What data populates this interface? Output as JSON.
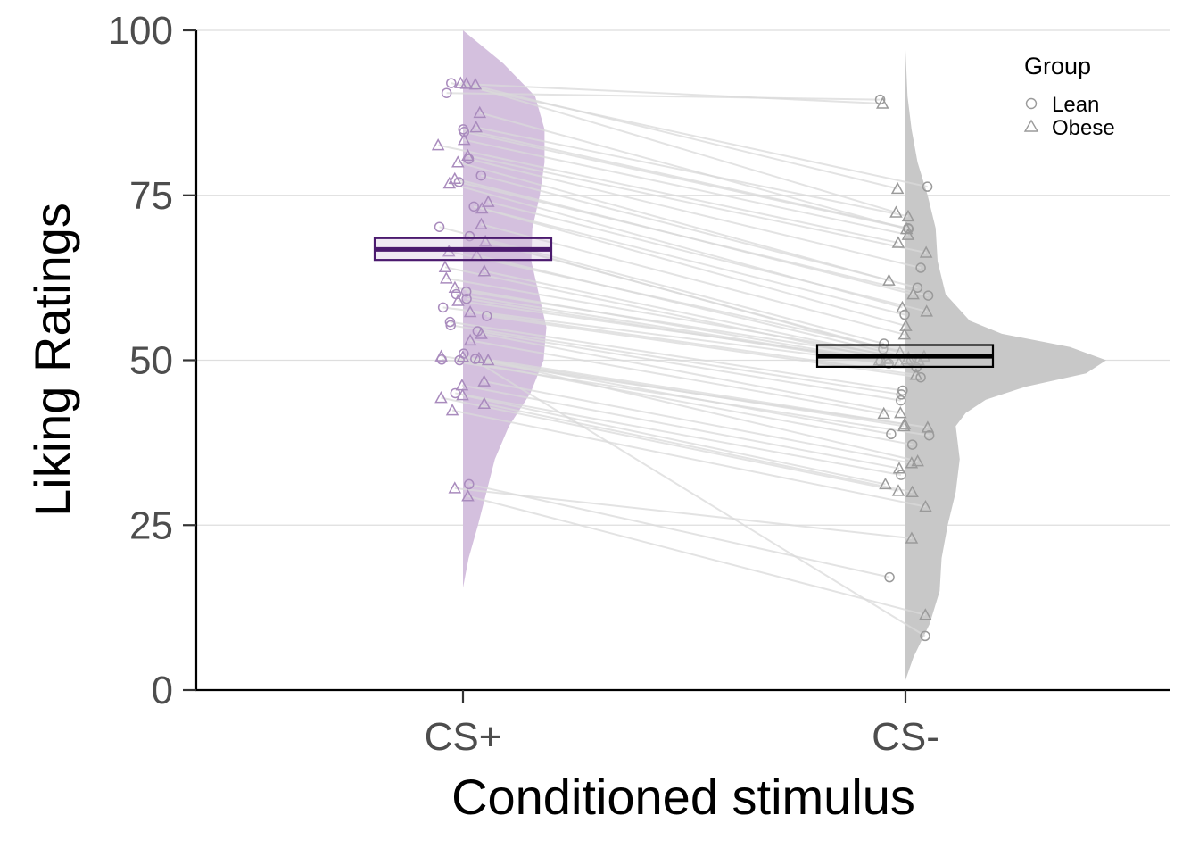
{
  "chart_data": {
    "type": "raincloud",
    "title": "",
    "xlabel": "Conditioned stimulus",
    "ylabel": "Liking Ratings",
    "ylim": [
      0,
      100
    ],
    "yticks": [
      0,
      25,
      50,
      75,
      100
    ],
    "categories": [
      "CS+",
      "CS-"
    ],
    "grid": "horizontal major lines",
    "legend": {
      "title": "Group",
      "position": "top-right",
      "entries": [
        {
          "label": "Lean",
          "shape": "circle"
        },
        {
          "label": "Obese",
          "shape": "triangle"
        }
      ]
    },
    "colors": {
      "CS+": "#4b1a6e",
      "CS-": "#000000",
      "cs_plus_fill": "#d4c0de",
      "cs_minus_fill": "#c8c8c8",
      "lines": "#d9d9d9",
      "grid": "#dedede"
    },
    "boxes": [
      {
        "category": "CS+",
        "mean": 66.8,
        "lower": 65.2,
        "upper": 68.5
      },
      {
        "category": "CS-",
        "mean": 50.6,
        "lower": 49.0,
        "upper": 52.3
      }
    ],
    "densities": {
      "CS+": {
        "y": [
          15.5,
          20,
          25,
          30,
          35,
          40,
          45,
          50,
          55,
          60,
          65,
          70,
          75,
          80,
          85,
          90,
          95,
          100
        ],
        "density": [
          0.0,
          0.06,
          0.16,
          0.25,
          0.34,
          0.49,
          0.72,
          0.86,
          0.89,
          0.81,
          0.73,
          0.74,
          0.82,
          0.87,
          0.87,
          0.77,
          0.43,
          0.0
        ]
      },
      "CS-": {
        "y": [
          1.5,
          5,
          10,
          15,
          20,
          25,
          30,
          35,
          40,
          42,
          44,
          46,
          48,
          50,
          52,
          54,
          56,
          58,
          60,
          65,
          70,
          75,
          80,
          85,
          90,
          97
        ],
        "density": [
          0.0,
          0.04,
          0.12,
          0.17,
          0.18,
          0.21,
          0.25,
          0.27,
          0.25,
          0.3,
          0.4,
          0.6,
          0.9,
          1.0,
          0.82,
          0.48,
          0.32,
          0.26,
          0.2,
          0.16,
          0.15,
          0.11,
          0.06,
          0.03,
          0.01,
          0.0
        ]
      }
    },
    "paired_points": [
      {
        "group": "Lean",
        "cs_plus": 90.5,
        "cs_minus": 89.5
      },
      {
        "group": "Obese",
        "cs_plus": 91.8,
        "cs_minus": 88.9
      },
      {
        "group": "Obese",
        "cs_plus": 91.9,
        "cs_minus": 76.0
      },
      {
        "group": "Obese",
        "cs_plus": 92.0,
        "cs_minus": 72.4
      },
      {
        "group": "Lean",
        "cs_plus": 92.0,
        "cs_minus": 76.3
      },
      {
        "group": "Obese",
        "cs_plus": 87.5,
        "cs_minus": 69.9
      },
      {
        "group": "Obese",
        "cs_plus": 85.3,
        "cs_minus": 71.8
      },
      {
        "group": "Lean",
        "cs_plus": 85.0,
        "cs_minus": 70.0
      },
      {
        "group": "Lean",
        "cs_plus": 84.6,
        "cs_minus": 69.9
      },
      {
        "group": "Obese",
        "cs_plus": 83.4,
        "cs_minus": 69.0
      },
      {
        "group": "Obese",
        "cs_plus": 82.6,
        "cs_minus": 67.8
      },
      {
        "group": "Obese",
        "cs_plus": 81.0,
        "cs_minus": 66.3
      },
      {
        "group": "Lean",
        "cs_plus": 80.5,
        "cs_minus": 64.0
      },
      {
        "group": "Obese",
        "cs_plus": 80.0,
        "cs_minus": 62.1
      },
      {
        "group": "Lean",
        "cs_plus": 78.0,
        "cs_minus": 61.0
      },
      {
        "group": "Obese",
        "cs_plus": 77.5,
        "cs_minus": 60.0
      },
      {
        "group": "Lean",
        "cs_plus": 77.0,
        "cs_minus": 59.8
      },
      {
        "group": "Obese",
        "cs_plus": 76.8,
        "cs_minus": 58.0
      },
      {
        "group": "Obese",
        "cs_plus": 74.0,
        "cs_minus": 57.4
      },
      {
        "group": "Lean",
        "cs_plus": 73.3,
        "cs_minus": 56.9
      },
      {
        "group": "Obese",
        "cs_plus": 73.0,
        "cs_minus": 55.2
      },
      {
        "group": "Obese",
        "cs_plus": 70.6,
        "cs_minus": 53.9
      },
      {
        "group": "Lean",
        "cs_plus": 70.2,
        "cs_minus": 52.5
      },
      {
        "group": "Lean",
        "cs_plus": 68.8,
        "cs_minus": 51.7
      },
      {
        "group": "Obese",
        "cs_plus": 68.0,
        "cs_minus": 51.2
      },
      {
        "group": "Obese",
        "cs_plus": 66.5,
        "cs_minus": 50.6
      },
      {
        "group": "Obese",
        "cs_plus": 65.9,
        "cs_minus": 50.4
      },
      {
        "group": "Obese",
        "cs_plus": 64.1,
        "cs_minus": 50.2
      },
      {
        "group": "Obese",
        "cs_plus": 63.5,
        "cs_minus": 50.1
      },
      {
        "group": "Obese",
        "cs_plus": 62.4,
        "cs_minus": 50.0
      },
      {
        "group": "Obese",
        "cs_plus": 61.0,
        "cs_minus": 50.0
      },
      {
        "group": "Lean",
        "cs_plus": 60.4,
        "cs_minus": 49.9
      },
      {
        "group": "Lean",
        "cs_plus": 60.0,
        "cs_minus": 49.8
      },
      {
        "group": "Obese",
        "cs_plus": 59.0,
        "cs_minus": 49.6
      },
      {
        "group": "Lean",
        "cs_plus": 59.3,
        "cs_minus": 49.5
      },
      {
        "group": "Lean",
        "cs_plus": 58.0,
        "cs_minus": 48.9
      },
      {
        "group": "Obese",
        "cs_plus": 57.3,
        "cs_minus": 47.8
      },
      {
        "group": "Lean",
        "cs_plus": 56.7,
        "cs_minus": 47.4
      },
      {
        "group": "Lean",
        "cs_plus": 55.8,
        "cs_minus": 45.4
      },
      {
        "group": "Lean",
        "cs_plus": 55.3,
        "cs_minus": 44.8
      },
      {
        "group": "Lean",
        "cs_plus": 54.4,
        "cs_minus": 43.9
      },
      {
        "group": "Obese",
        "cs_plus": 54.0,
        "cs_minus": 42.0
      },
      {
        "group": "Obese",
        "cs_plus": 53.0,
        "cs_minus": 41.9
      },
      {
        "group": "Obese",
        "cs_plus": 50.6,
        "cs_minus": 40.3
      },
      {
        "group": "Obese",
        "cs_plus": 50.5,
        "cs_minus": 40.0
      },
      {
        "group": "Obese",
        "cs_plus": 50.3,
        "cs_minus": 39.8
      },
      {
        "group": "Lean",
        "cs_plus": 50.2,
        "cs_minus": 38.8
      },
      {
        "group": "Lean",
        "cs_plus": 50.1,
        "cs_minus": 38.6
      },
      {
        "group": "Lean",
        "cs_plus": 50.0,
        "cs_minus": 37.2
      },
      {
        "group": "Obese",
        "cs_plus": 50.0,
        "cs_minus": 34.7
      },
      {
        "group": "Obese",
        "cs_plus": 46.8,
        "cs_minus": 34.4
      },
      {
        "group": "Obese",
        "cs_plus": 46.2,
        "cs_minus": 33.6
      },
      {
        "group": "Lean",
        "cs_plus": 45.0,
        "cs_minus": 32.6
      },
      {
        "group": "Obese",
        "cs_plus": 44.7,
        "cs_minus": 31.2
      },
      {
        "group": "Obese",
        "cs_plus": 44.3,
        "cs_minus": 30.2
      },
      {
        "group": "Obese",
        "cs_plus": 43.4,
        "cs_minus": 30.0
      },
      {
        "group": "Obese",
        "cs_plus": 42.4,
        "cs_minus": 27.8
      },
      {
        "group": "Obese",
        "cs_plus": 30.6,
        "cs_minus": 23.0
      },
      {
        "group": "Lean",
        "cs_plus": 31.2,
        "cs_minus": 17.1
      },
      {
        "group": "Obese",
        "cs_plus": 29.4,
        "cs_minus": 11.4
      },
      {
        "group": "Lean",
        "cs_plus": 51.0,
        "cs_minus": 8.2
      }
    ]
  }
}
